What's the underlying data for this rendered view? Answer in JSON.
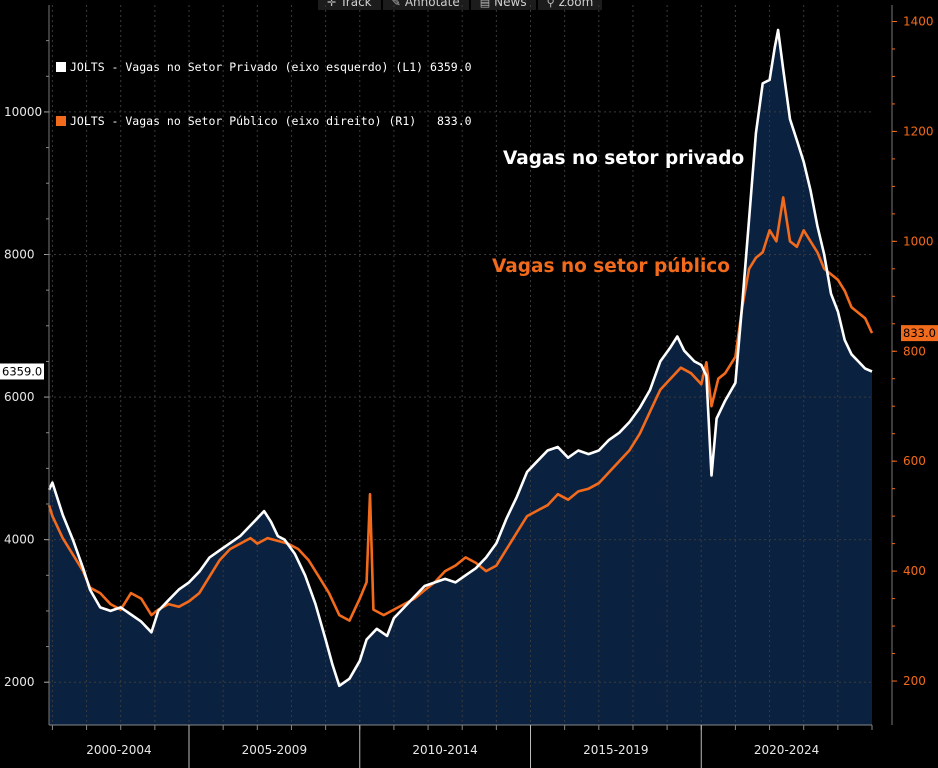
{
  "toolbar": {
    "items": [
      {
        "label": "Track",
        "icon": "crosshair-icon"
      },
      {
        "label": "Annotate",
        "icon": "pencil-icon"
      },
      {
        "label": "News",
        "icon": "news-icon"
      },
      {
        "label": "Zoom",
        "icon": "magnifier-icon"
      }
    ]
  },
  "legend": {
    "private": "JOLTS - Vagas no Setor Privado (eixo esquerdo) (L1) 6359.0",
    "public": "JOLTS - Vagas no Setor Público (eixo direito) (R1)   833.0"
  },
  "annotations": {
    "private": "Vagas no setor privado",
    "public": "Vagas no setor público"
  },
  "colors": {
    "private": "#ffffff",
    "public": "#f26a1b",
    "area": "#0b2140",
    "grid": "#3a3a3a",
    "background": "#000000"
  },
  "chart_data": {
    "type": "line",
    "x_range": [
      2000.9,
      2025.0
    ],
    "x_sections": [
      {
        "label": "2000-2004",
        "start": 2000.9,
        "end": 2005.0
      },
      {
        "label": "2005-2009",
        "start": 2005.0,
        "end": 2010.0
      },
      {
        "label": "2010-2014",
        "start": 2010.0,
        "end": 2015.0
      },
      {
        "label": "2015-2019",
        "start": 2015.0,
        "end": 2020.0
      },
      {
        "label": "2020-2024",
        "start": 2020.0,
        "end": 2025.0
      }
    ],
    "left_axis": {
      "range": [
        1400,
        11500
      ],
      "ticks": [
        2000,
        4000,
        6000,
        8000,
        10000
      ],
      "last_value_label": "6359.0"
    },
    "right_axis": {
      "range": [
        120,
        1430
      ],
      "ticks": [
        200,
        400,
        600,
        800,
        1000,
        1200,
        1400
      ],
      "last_value_label": "833.0"
    },
    "grid": true,
    "series": [
      {
        "name": "JOLTS - Vagas no Setor Privado (eixo esquerdo)",
        "axis": "left",
        "points": [
          [
            2000.9,
            4700
          ],
          [
            2001.0,
            4800
          ],
          [
            2001.3,
            4350
          ],
          [
            2001.6,
            4000
          ],
          [
            2001.9,
            3600
          ],
          [
            2002.1,
            3300
          ],
          [
            2002.4,
            3050
          ],
          [
            2002.7,
            3000
          ],
          [
            2003.0,
            3050
          ],
          [
            2003.3,
            2950
          ],
          [
            2003.6,
            2850
          ],
          [
            2003.9,
            2700
          ],
          [
            2004.1,
            3000
          ],
          [
            2004.4,
            3150
          ],
          [
            2004.7,
            3300
          ],
          [
            2005.0,
            3400
          ],
          [
            2005.3,
            3550
          ],
          [
            2005.6,
            3750
          ],
          [
            2005.9,
            3850
          ],
          [
            2006.2,
            3950
          ],
          [
            2006.5,
            4050
          ],
          [
            2006.8,
            4200
          ],
          [
            2007.0,
            4300
          ],
          [
            2007.2,
            4400
          ],
          [
            2007.4,
            4250
          ],
          [
            2007.6,
            4050
          ],
          [
            2007.8,
            4000
          ],
          [
            2008.1,
            3800
          ],
          [
            2008.4,
            3500
          ],
          [
            2008.7,
            3100
          ],
          [
            2009.0,
            2600
          ],
          [
            2009.2,
            2250
          ],
          [
            2009.4,
            1950
          ],
          [
            2009.7,
            2050
          ],
          [
            2010.0,
            2300
          ],
          [
            2010.2,
            2600
          ],
          [
            2010.5,
            2750
          ],
          [
            2010.8,
            2650
          ],
          [
            2011.0,
            2900
          ],
          [
            2011.3,
            3050
          ],
          [
            2011.6,
            3200
          ],
          [
            2011.9,
            3350
          ],
          [
            2012.2,
            3400
          ],
          [
            2012.5,
            3450
          ],
          [
            2012.8,
            3400
          ],
          [
            2013.1,
            3500
          ],
          [
            2013.4,
            3600
          ],
          [
            2013.7,
            3750
          ],
          [
            2014.0,
            3950
          ],
          [
            2014.3,
            4300
          ],
          [
            2014.6,
            4600
          ],
          [
            2014.9,
            4950
          ],
          [
            2015.2,
            5100
          ],
          [
            2015.5,
            5250
          ],
          [
            2015.8,
            5300
          ],
          [
            2016.1,
            5150
          ],
          [
            2016.4,
            5250
          ],
          [
            2016.7,
            5200
          ],
          [
            2017.0,
            5250
          ],
          [
            2017.3,
            5400
          ],
          [
            2017.6,
            5500
          ],
          [
            2017.9,
            5650
          ],
          [
            2018.2,
            5850
          ],
          [
            2018.5,
            6100
          ],
          [
            2018.8,
            6500
          ],
          [
            2019.1,
            6700
          ],
          [
            2019.3,
            6850
          ],
          [
            2019.5,
            6650
          ],
          [
            2019.8,
            6500
          ],
          [
            2020.0,
            6450
          ],
          [
            2020.15,
            6300
          ],
          [
            2020.3,
            4900
          ],
          [
            2020.45,
            5700
          ],
          [
            2020.7,
            5950
          ],
          [
            2021.0,
            6200
          ],
          [
            2021.2,
            7300
          ],
          [
            2021.4,
            8500
          ],
          [
            2021.6,
            9700
          ],
          [
            2021.8,
            10400
          ],
          [
            2022.0,
            10450
          ],
          [
            2022.15,
            10900
          ],
          [
            2022.25,
            11150
          ],
          [
            2022.4,
            10600
          ],
          [
            2022.6,
            9900
          ],
          [
            2022.8,
            9600
          ],
          [
            2023.0,
            9300
          ],
          [
            2023.2,
            8900
          ],
          [
            2023.4,
            8400
          ],
          [
            2023.6,
            8000
          ],
          [
            2023.8,
            7450
          ],
          [
            2024.0,
            7200
          ],
          [
            2024.2,
            6800
          ],
          [
            2024.4,
            6600
          ],
          [
            2024.6,
            6500
          ],
          [
            2024.8,
            6400
          ],
          [
            2025.0,
            6359
          ]
        ]
      },
      {
        "name": "JOLTS - Vagas no Setor Público (eixo direito)",
        "axis": "right",
        "points": [
          [
            2000.9,
            520
          ],
          [
            2001.0,
            500
          ],
          [
            2001.3,
            460
          ],
          [
            2001.6,
            430
          ],
          [
            2001.9,
            400
          ],
          [
            2002.1,
            370
          ],
          [
            2002.4,
            360
          ],
          [
            2002.7,
            340
          ],
          [
            2003.0,
            330
          ],
          [
            2003.3,
            360
          ],
          [
            2003.6,
            350
          ],
          [
            2003.9,
            320
          ],
          [
            2004.1,
            330
          ],
          [
            2004.4,
            340
          ],
          [
            2004.7,
            335
          ],
          [
            2005.0,
            345
          ],
          [
            2005.3,
            360
          ],
          [
            2005.6,
            390
          ],
          [
            2005.9,
            420
          ],
          [
            2006.2,
            440
          ],
          [
            2006.5,
            450
          ],
          [
            2006.8,
            460
          ],
          [
            2007.0,
            450
          ],
          [
            2007.3,
            460
          ],
          [
            2007.6,
            455
          ],
          [
            2007.9,
            450
          ],
          [
            2008.2,
            440
          ],
          [
            2008.5,
            420
          ],
          [
            2008.8,
            390
          ],
          [
            2009.1,
            360
          ],
          [
            2009.4,
            320
          ],
          [
            2009.7,
            310
          ],
          [
            2010.0,
            350
          ],
          [
            2010.2,
            380
          ],
          [
            2010.3,
            540
          ],
          [
            2010.4,
            330
          ],
          [
            2010.7,
            320
          ],
          [
            2011.0,
            330
          ],
          [
            2011.3,
            340
          ],
          [
            2011.6,
            350
          ],
          [
            2011.9,
            365
          ],
          [
            2012.2,
            380
          ],
          [
            2012.5,
            400
          ],
          [
            2012.8,
            410
          ],
          [
            2013.1,
            425
          ],
          [
            2013.4,
            415
          ],
          [
            2013.7,
            400
          ],
          [
            2014.0,
            410
          ],
          [
            2014.3,
            440
          ],
          [
            2014.6,
            470
          ],
          [
            2014.9,
            500
          ],
          [
            2015.2,
            510
          ],
          [
            2015.5,
            520
          ],
          [
            2015.8,
            540
          ],
          [
            2016.1,
            530
          ],
          [
            2016.4,
            545
          ],
          [
            2016.7,
            550
          ],
          [
            2017.0,
            560
          ],
          [
            2017.3,
            580
          ],
          [
            2017.6,
            600
          ],
          [
            2017.9,
            620
          ],
          [
            2018.2,
            650
          ],
          [
            2018.5,
            690
          ],
          [
            2018.8,
            730
          ],
          [
            2019.1,
            750
          ],
          [
            2019.4,
            770
          ],
          [
            2019.7,
            760
          ],
          [
            2020.0,
            740
          ],
          [
            2020.15,
            780
          ],
          [
            2020.3,
            700
          ],
          [
            2020.5,
            750
          ],
          [
            2020.7,
            760
          ],
          [
            2021.0,
            790
          ],
          [
            2021.2,
            880
          ],
          [
            2021.4,
            950
          ],
          [
            2021.6,
            970
          ],
          [
            2021.8,
            980
          ],
          [
            2022.0,
            1020
          ],
          [
            2022.2,
            1000
          ],
          [
            2022.4,
            1080
          ],
          [
            2022.6,
            1000
          ],
          [
            2022.8,
            990
          ],
          [
            2023.0,
            1020
          ],
          [
            2023.2,
            1000
          ],
          [
            2023.4,
            980
          ],
          [
            2023.6,
            950
          ],
          [
            2023.8,
            940
          ],
          [
            2024.0,
            930
          ],
          [
            2024.2,
            910
          ],
          [
            2024.4,
            880
          ],
          [
            2024.6,
            870
          ],
          [
            2024.8,
            860
          ],
          [
            2025.0,
            833
          ]
        ]
      }
    ]
  }
}
